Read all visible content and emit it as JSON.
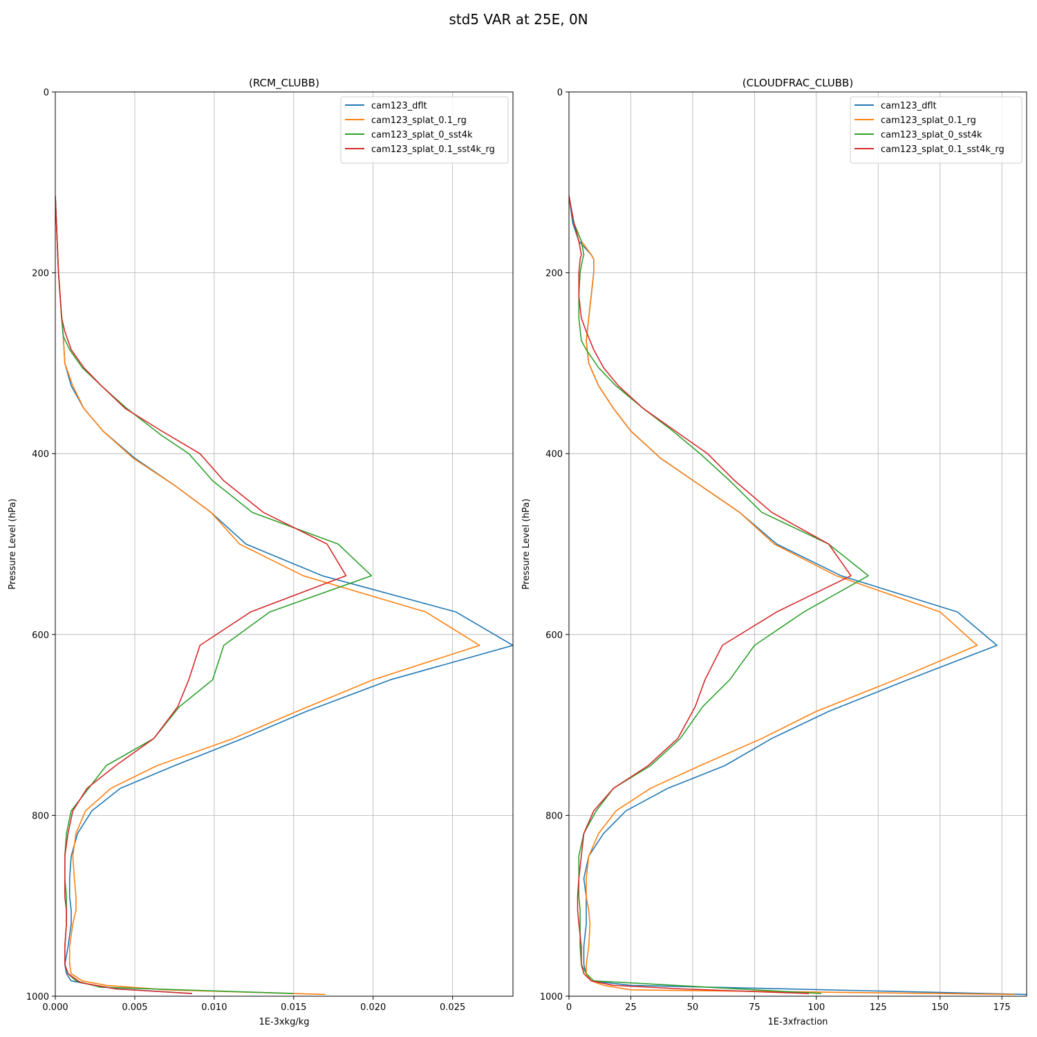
{
  "figure": {
    "suptitle": "std5 VAR at 25E, 0N"
  },
  "chart_data": [
    {
      "type": "line",
      "title": "(RCM_CLUBB)",
      "xlabel": "1E-3xkg/kg",
      "ylabel": "Pressure Level (hPa)",
      "xlim": [
        0,
        0.0288
      ],
      "ylim": [
        1000,
        0
      ],
      "xticks": [
        0,
        0.005,
        0.01,
        0.015,
        0.02,
        0.025
      ],
      "xtick_labels": [
        "0.000",
        "0.005",
        "0.010",
        "0.015",
        "0.020",
        "0.025"
      ],
      "yticks": [
        0,
        200,
        400,
        600,
        800,
        1000
      ],
      "ytick_labels": [
        "0",
        "200",
        "400",
        "600",
        "800",
        "1000"
      ],
      "grid": true,
      "legend_loc": "upper right",
      "series": [
        {
          "name": "cam123_dflt",
          "color": "#1f77b4",
          "x": [
            0,
            0.0002,
            0.0004,
            0.0005,
            0.0006,
            0.001,
            0.0018,
            0.003,
            0.005,
            0.0075,
            0.0098,
            0.012,
            0.0168,
            0.0252,
            0.0288,
            0.0211,
            0.0158,
            0.0118,
            0.0075,
            0.0041,
            0.0023,
            0.0014,
            0.001,
            0.0009,
            0.0009,
            0.001,
            0.001,
            0.0008,
            0.0006,
            0.0007,
            0.001,
            0.0025,
            0.004,
            0.0086
          ],
          "y": [
            115,
            200,
            250,
            270,
            300,
            325,
            350,
            375,
            405,
            435,
            465,
            500,
            535,
            575,
            612,
            650,
            685,
            715,
            745,
            770,
            795,
            820,
            845,
            870,
            890,
            905,
            920,
            945,
            965,
            975,
            983,
            988,
            992,
            997
          ]
        },
        {
          "name": "cam123_splat_0.1_rg",
          "color": "#ff7f0e",
          "x": [
            0,
            0.0002,
            0.0004,
            0.0005,
            0.0006,
            0.0011,
            0.0018,
            0.003,
            0.0049,
            0.0075,
            0.0098,
            0.0116,
            0.0156,
            0.0233,
            0.0267,
            0.02,
            0.0152,
            0.0112,
            0.0064,
            0.0035,
            0.0019,
            0.0013,
            0.0011,
            0.0012,
            0.0013,
            0.0013,
            0.0011,
            0.0009,
            0.0009,
            0.001,
            0.0017,
            0.0032,
            0.007,
            0.017
          ],
          "y": [
            115,
            200,
            250,
            270,
            300,
            325,
            350,
            375,
            405,
            435,
            465,
            500,
            535,
            575,
            612,
            650,
            685,
            715,
            745,
            770,
            795,
            820,
            845,
            870,
            890,
            905,
            920,
            945,
            965,
            975,
            983,
            988,
            993,
            998
          ]
        },
        {
          "name": "cam123_splat_0_sst4k",
          "color": "#2ca02c",
          "x": [
            0,
            0.0002,
            0.0004,
            0.0005,
            0.0009,
            0.0017,
            0.0029,
            0.0045,
            0.0067,
            0.0084,
            0.0099,
            0.0124,
            0.0178,
            0.0199,
            0.0135,
            0.0106,
            0.0099,
            0.0078,
            0.0062,
            0.0032,
            0.0021,
            0.001,
            0.0007,
            0.0006,
            0.0006,
            0.0007,
            0.0007,
            0.0007,
            0.0006,
            0.0006,
            0.0008,
            0.0013,
            0.0028,
            0.015
          ],
          "y": [
            115,
            200,
            250,
            270,
            285,
            305,
            325,
            350,
            380,
            400,
            430,
            465,
            500,
            535,
            575,
            612,
            650,
            680,
            715,
            745,
            770,
            795,
            820,
            845,
            870,
            890,
            905,
            920,
            945,
            965,
            975,
            983,
            990,
            997
          ]
        },
        {
          "name": "cam123_splat_0.1_sst4k_rg",
          "color": "#d62728",
          "x": [
            0,
            0.0002,
            0.0004,
            0.0006,
            0.001,
            0.0018,
            0.0029,
            0.0044,
            0.0067,
            0.0091,
            0.0106,
            0.0131,
            0.0171,
            0.0183,
            0.0123,
            0.0091,
            0.0084,
            0.0077,
            0.0062,
            0.0038,
            0.002,
            0.0011,
            0.0008,
            0.0006,
            0.0006,
            0.0006,
            0.0007,
            0.0007,
            0.0006,
            0.0006,
            0.0008,
            0.0016,
            0.0038,
            0.0086
          ],
          "y": [
            115,
            200,
            250,
            265,
            285,
            305,
            325,
            350,
            375,
            400,
            430,
            465,
            500,
            535,
            575,
            612,
            650,
            680,
            715,
            745,
            770,
            795,
            820,
            845,
            870,
            890,
            905,
            920,
            945,
            965,
            975,
            985,
            992,
            997
          ]
        }
      ]
    },
    {
      "type": "line",
      "title": "(CLOUDFRAC_CLUBB)",
      "xlabel": "1E-3xfraction",
      "ylabel": "Pressure Level (hPa)",
      "xlim": [
        0,
        185
      ],
      "ylim": [
        1000,
        0
      ],
      "xticks": [
        0,
        25,
        50,
        75,
        100,
        125,
        150,
        175
      ],
      "xtick_labels": [
        "0",
        "25",
        "50",
        "75",
        "100",
        "125",
        "150",
        "175"
      ],
      "yticks": [
        0,
        200,
        400,
        600,
        800,
        1000
      ],
      "ytick_labels": [
        "0",
        "200",
        "400",
        "600",
        "800",
        "1000"
      ],
      "grid": true,
      "legend_loc": "upper right",
      "series": [
        {
          "name": "cam123_dflt",
          "color": "#1f77b4",
          "x": [
            0,
            1.5,
            4,
            9,
            10,
            10,
            9,
            8,
            7,
            8,
            12,
            18,
            25,
            37,
            53,
            69,
            84,
            110,
            157,
            173,
            137,
            105,
            82,
            63,
            40,
            23,
            14,
            8,
            6,
            7,
            7,
            7,
            6,
            6,
            7,
            9,
            25,
            185
          ],
          "y": [
            115,
            145,
            165,
            180,
            185,
            200,
            225,
            250,
            275,
            300,
            325,
            350,
            375,
            405,
            435,
            465,
            500,
            535,
            575,
            612,
            650,
            685,
            715,
            745,
            770,
            795,
            820,
            845,
            870,
            890,
            905,
            920,
            945,
            965,
            975,
            983,
            988,
            998
          ]
        },
        {
          "name": "cam123_splat_0.1_rg",
          "color": "#ff7f0e",
          "x": [
            0,
            2,
            5,
            9,
            10,
            10,
            9,
            8,
            7,
            8,
            12,
            18,
            25,
            37,
            53,
            69,
            83,
            108,
            150,
            165,
            132,
            100,
            78,
            53,
            33,
            19,
            12,
            8,
            7,
            7,
            8,
            8.5,
            8,
            7,
            7,
            9,
            14,
            25,
            180
          ],
          "y": [
            115,
            145,
            165,
            180,
            185,
            200,
            225,
            250,
            275,
            300,
            325,
            350,
            375,
            405,
            435,
            465,
            500,
            535,
            575,
            612,
            650,
            685,
            715,
            745,
            770,
            795,
            820,
            845,
            870,
            890,
            905,
            920,
            945,
            965,
            975,
            983,
            988,
            993,
            998
          ]
        },
        {
          "name": "cam123_splat_0_sst4k",
          "color": "#2ca02c",
          "x": [
            0,
            2,
            5,
            6,
            5.5,
            4.5,
            4,
            4,
            5,
            7,
            12,
            19,
            30,
            42,
            53,
            65,
            78,
            105,
            121,
            95,
            75,
            65,
            54,
            45,
            33,
            18,
            11,
            6,
            4,
            4,
            4,
            4.5,
            4.5,
            4.5,
            5,
            7,
            10,
            102
          ],
          "y": [
            115,
            145,
            165,
            180,
            185,
            200,
            225,
            250,
            275,
            285,
            305,
            325,
            350,
            375,
            400,
            430,
            465,
            500,
            535,
            575,
            612,
            650,
            680,
            715,
            745,
            770,
            795,
            820,
            845,
            870,
            890,
            905,
            920,
            945,
            965,
            975,
            983,
            997
          ]
        },
        {
          "name": "cam123_splat_0.1_sst4k_rg",
          "color": "#d62728",
          "x": [
            0,
            2,
            4,
            5,
            4.5,
            4,
            4,
            5,
            7,
            10,
            14,
            20,
            30,
            43,
            56,
            67,
            82,
            105,
            114,
            84,
            62,
            55,
            51,
            44,
            32,
            18,
            10,
            6,
            5,
            4,
            3.5,
            3.5,
            4,
            5,
            5,
            6,
            9,
            18,
            46,
            97
          ],
          "y": [
            115,
            145,
            165,
            180,
            185,
            200,
            225,
            250,
            265,
            285,
            305,
            325,
            350,
            375,
            400,
            430,
            465,
            500,
            535,
            575,
            612,
            650,
            680,
            715,
            745,
            770,
            795,
            820,
            845,
            870,
            890,
            905,
            920,
            945,
            965,
            975,
            983,
            988,
            992,
            997
          ]
        }
      ]
    }
  ]
}
